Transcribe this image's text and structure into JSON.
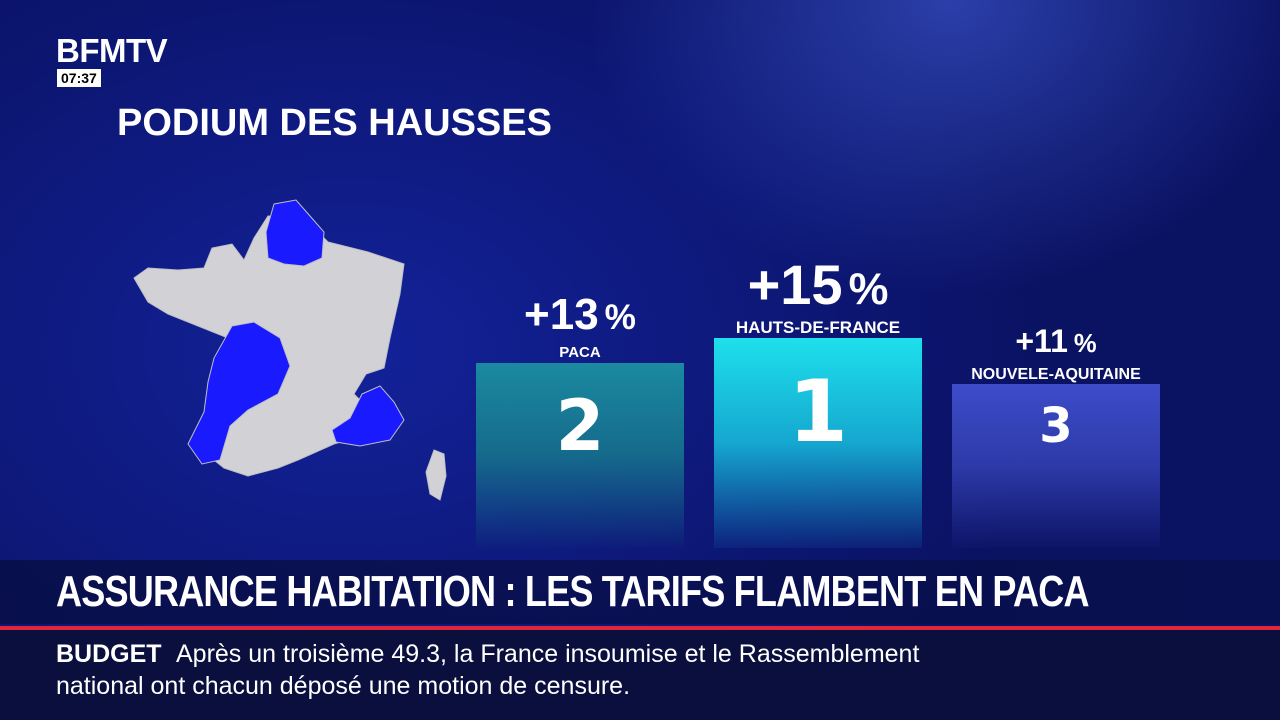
{
  "channel": {
    "logo": "BFMTV",
    "time": "07:37"
  },
  "title": "PODIUM DES HAUSSES",
  "podium": [
    {
      "rank": "2",
      "value": "+13",
      "unit": "%",
      "region": "PACA",
      "color": "#1b8aa0"
    },
    {
      "rank": "1",
      "value": "+15",
      "unit": "%",
      "region": "HAUTS-DE-FRANCE",
      "color": "#1ee0ec"
    },
    {
      "rank": "3",
      "value": "+11",
      "unit": "%",
      "region": "NOUVELE-AQUITAINE",
      "color": "#3d4cc9"
    }
  ],
  "map": {
    "highlight_color": "#1a1aff",
    "base_color": "#d2d2d6"
  },
  "headline": "ASSURANCE HABITATION : LES TARIFS FLAMBENT EN PACA",
  "ticker": {
    "label": "BUDGET",
    "line1": "Après un troisième 49.3, la France insoumise et le Rassemblement",
    "line2": "national ont chacun déposé une motion de censure."
  }
}
